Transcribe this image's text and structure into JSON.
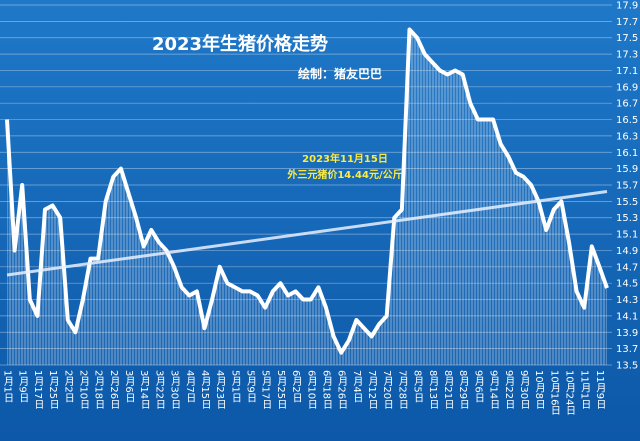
{
  "chart_data": {
    "type": "line",
    "title": "2023年生猪价格走势",
    "subtitle": "绘制：猪友巴巴",
    "annotations": [
      "2023年11月15日",
      "外三元猪价14.44元/公斤"
    ],
    "categories": [
      "1月1日",
      null,
      "1月9日",
      null,
      "1月17日",
      null,
      "1月25日",
      null,
      "2月2日",
      null,
      "2月10日",
      null,
      "2月18日",
      null,
      "2月26日",
      null,
      "3月6日",
      null,
      "3月14日",
      null,
      "3月22日",
      null,
      "3月30日",
      null,
      "4月7日",
      null,
      "4月15日",
      null,
      "4月23日",
      null,
      "5月1日",
      null,
      "5月9日",
      null,
      "5月17日",
      null,
      "5月25日",
      null,
      "6月2日",
      null,
      "6月10日",
      null,
      "6月18日",
      null,
      "6月26日",
      null,
      "7月4日",
      null,
      "7月12日",
      null,
      "7月20日",
      null,
      "7月28日",
      null,
      "8月5日",
      null,
      "8月13日",
      null,
      "8月21日",
      null,
      "8月29日",
      null,
      "9月6日",
      null,
      "9月14日",
      null,
      "9月22日",
      null,
      "9月30日",
      null,
      "10月8日",
      null,
      "10月16日",
      null,
      "10月24日",
      null,
      "11月1日",
      null,
      "11月9日",
      null
    ],
    "values": [
      16.5,
      14.9,
      15.7,
      14.3,
      14.1,
      15.4,
      15.45,
      15.3,
      14.05,
      13.9,
      14.3,
      14.8,
      14.8,
      15.5,
      15.8,
      15.9,
      15.6,
      15.3,
      14.95,
      15.15,
      15.0,
      14.9,
      14.7,
      14.45,
      14.35,
      14.4,
      13.95,
      14.3,
      14.7,
      14.5,
      14.45,
      14.4,
      14.4,
      14.35,
      14.2,
      14.4,
      14.5,
      14.35,
      14.4,
      14.3,
      14.3,
      14.45,
      14.2,
      13.85,
      13.65,
      13.8,
      14.05,
      13.95,
      13.85,
      14.0,
      14.1,
      15.3,
      15.4,
      17.6,
      17.5,
      17.3,
      17.2,
      17.1,
      17.05,
      17.1,
      17.05,
      16.7,
      16.5,
      16.5,
      16.5,
      16.2,
      16.05,
      15.85,
      15.8,
      15.7,
      15.5,
      15.15,
      15.4,
      15.5,
      15.0,
      14.4,
      14.2,
      14.95,
      14.7,
      14.44
    ],
    "color": "#ffffff",
    "trendline": [
      14.6,
      15.62
    ],
    "ylim": [
      13.5,
      17.9
    ],
    "yticks": [
      {
        "value": 13.5,
        "label": "13.5"
      },
      {
        "value": 13.7,
        "label": "13.7"
      },
      {
        "value": 13.9,
        "label": "13.9"
      },
      {
        "value": 14.1,
        "label": "14.1"
      },
      {
        "value": 14.3,
        "label": "14.3"
      },
      {
        "value": 14.5,
        "label": "14.5"
      },
      {
        "value": 14.7,
        "label": "14.7"
      },
      {
        "value": 14.9,
        "label": "14.9"
      },
      {
        "value": 15.1,
        "label": "15.1"
      },
      {
        "value": 15.3,
        "label": "15.3"
      },
      {
        "value": 15.5,
        "label": "15.5"
      },
      {
        "value": 15.7,
        "label": "15.7"
      },
      {
        "value": 15.9,
        "label": "15.9"
      },
      {
        "value": 16.1,
        "label": "16.1"
      },
      {
        "value": 16.3,
        "label": "16.3"
      },
      {
        "value": 16.5,
        "label": "16.5"
      },
      {
        "value": 16.7,
        "label": "16.7"
      },
      {
        "value": 16.9,
        "label": "16.9"
      },
      {
        "value": 17.1,
        "label": "17.1"
      },
      {
        "value": 17.3,
        "label": "17.3"
      },
      {
        "value": 17.5,
        "label": "17.5"
      },
      {
        "value": 17.7,
        "label": "17.7"
      },
      {
        "value": 17.9,
        "label": "17.9"
      }
    ],
    "grid": true
  }
}
